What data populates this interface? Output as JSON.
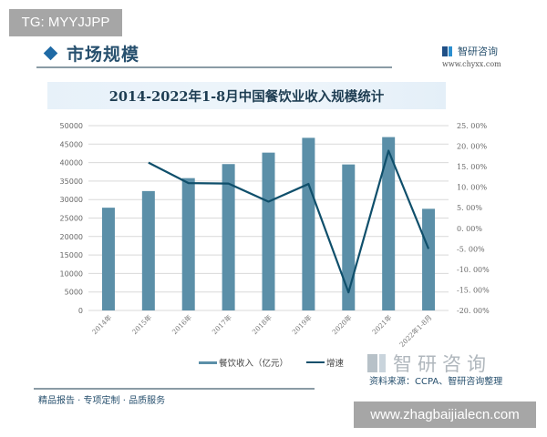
{
  "watermark_badge": "TG: MYYJJPP",
  "section": {
    "title": "市场规模"
  },
  "brand": {
    "name": "智研咨询",
    "url": "www.chyxx.com"
  },
  "colors": {
    "bar": "#5b8fa8",
    "line": "#0f4f6b",
    "accent": "#1f6aa5",
    "grid": "#d9d9d9"
  },
  "legend": {
    "bar_label": "餐饮收入（亿元）",
    "line_label": "增速"
  },
  "footer": {
    "source": "资料来源：CCPA、智研咨询整理",
    "slogan": "精品报告 · 专项定制 · 品质服务",
    "url_badge": "www.zhagbaijialecn.com"
  },
  "chart_data": {
    "type": "bar",
    "title": "2014-2022年1-8月中国餐饮业收入规模统计",
    "categories": [
      "2014年",
      "2015年",
      "2016年",
      "2017年",
      "2018年",
      "2019年",
      "2020年",
      "2021年",
      "2022年1-8月"
    ],
    "series": [
      {
        "name": "餐饮收入（亿元）",
        "type": "bar",
        "axis": "left",
        "values": [
          27800,
          32300,
          35800,
          39600,
          42700,
          46700,
          39500,
          46900,
          27500
        ]
      },
      {
        "name": "增速",
        "type": "line",
        "axis": "right",
        "unit": "%",
        "values": [
          null,
          16.0,
          11.0,
          10.9,
          6.5,
          10.8,
          -15.6,
          18.9,
          -5.0
        ]
      }
    ],
    "y_left": {
      "ylim": [
        0,
        50000
      ],
      "ticks": [
        "0",
        "5000",
        "10000",
        "15000",
        "20000",
        "25000",
        "30000",
        "35000",
        "40000",
        "45000",
        "50000"
      ]
    },
    "y_right": {
      "ylim": [
        -20,
        25
      ],
      "ticks": [
        "-20.00%",
        "-15.00%",
        "-10.00%",
        "-5.00%",
        "0.00%",
        "5.00%",
        "10.00%",
        "15.00%",
        "20.00%",
        "25.00%"
      ]
    },
    "xlabel": "",
    "ylabel": "",
    "grid": true,
    "legend_position": "bottom"
  }
}
